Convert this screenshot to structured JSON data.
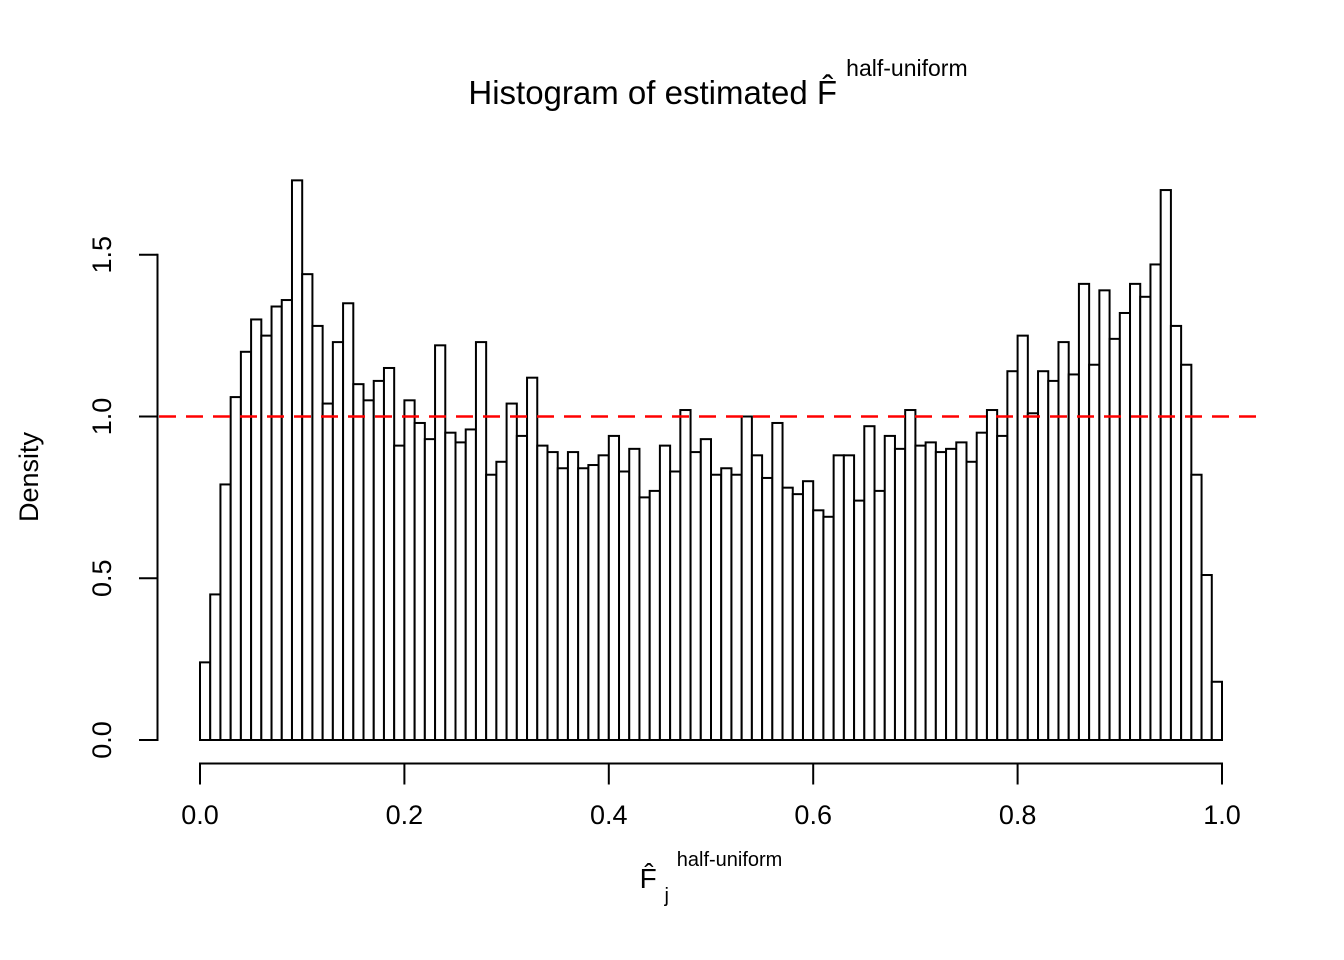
{
  "title": {
    "main": "Histogram of estimated F̂",
    "sup": "half-uniform"
  },
  "xlabel": {
    "base": "F̂",
    "sub": "j",
    "sup": "half-uniform"
  },
  "chart_data": {
    "type": "bar",
    "subtype": "histogram",
    "title": "Histogram of estimated F̂^half-uniform",
    "xlabel": "F̂_j^half-uniform",
    "ylabel": "Density",
    "xlim": [
      0.0,
      1.0
    ],
    "ylim": [
      0.0,
      1.5
    ],
    "grid": false,
    "legend": "none",
    "x_tick_values": [
      0.0,
      0.2,
      0.4,
      0.6,
      0.8,
      1.0
    ],
    "x_tick_labels": [
      "0.0",
      "0.2",
      "0.4",
      "0.6",
      "0.8",
      "1.0"
    ],
    "y_tick_values": [
      0.0,
      0.5,
      1.0,
      1.5
    ],
    "y_tick_labels": [
      "0.0",
      "0.5",
      "1.0",
      "1.5"
    ],
    "bin_start": 0.0,
    "bin_width": 0.01,
    "densities": [
      0.24,
      0.45,
      0.79,
      1.06,
      1.2,
      1.3,
      1.25,
      1.34,
      1.36,
      1.73,
      1.44,
      1.28,
      1.04,
      1.23,
      1.35,
      1.1,
      1.05,
      1.11,
      1.15,
      0.91,
      1.05,
      0.98,
      0.93,
      1.22,
      0.95,
      0.92,
      0.96,
      1.23,
      0.82,
      0.86,
      1.04,
      0.94,
      1.12,
      0.91,
      0.89,
      0.84,
      0.89,
      0.84,
      0.85,
      0.88,
      0.94,
      0.83,
      0.9,
      0.75,
      0.77,
      0.91,
      0.83,
      1.02,
      0.89,
      0.93,
      0.82,
      0.84,
      0.82,
      1.0,
      0.88,
      0.81,
      0.98,
      0.78,
      0.76,
      0.8,
      0.71,
      0.69,
      0.88,
      0.88,
      0.74,
      0.97,
      0.77,
      0.94,
      0.9,
      1.02,
      0.91,
      0.92,
      0.89,
      0.9,
      0.92,
      0.86,
      0.95,
      1.02,
      0.94,
      1.14,
      1.25,
      1.01,
      1.14,
      1.11,
      1.23,
      1.13,
      1.41,
      1.16,
      1.39,
      1.24,
      1.32,
      1.41,
      1.37,
      1.47,
      1.7,
      1.28,
      1.16,
      0.82,
      0.51,
      0.18
    ],
    "bar_fill": "#ffffff",
    "bar_stroke": "#000000",
    "reference_line": {
      "y": 1.0,
      "color": "#ff0000",
      "style": "dashed"
    }
  }
}
